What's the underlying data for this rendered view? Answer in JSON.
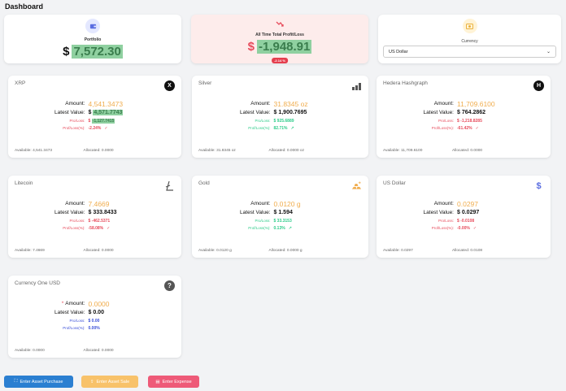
{
  "page_title": "Dashboard",
  "summary": {
    "portfolio": {
      "label": "Portfolio",
      "currency": "$",
      "value": "7,572.30"
    },
    "profit": {
      "label": "All Time Total Profit/Loss",
      "currency": "$",
      "value": "-1,948.91",
      "pct": "-2.14 %"
    },
    "currency": {
      "label": "Currency",
      "selected": "US Dollar"
    }
  },
  "labels": {
    "amount": "Amount:",
    "latest": "Latest Value:",
    "pl": "Pro/Loss:",
    "pct": "Prof/Loss(%):",
    "available": "Available:",
    "allocated": "Allocated:"
  },
  "assets": [
    {
      "name": "XRP",
      "amount": "4,541.3473",
      "latest_cur": "$",
      "latest": "4,571.7743",
      "pl_cur": "$",
      "pl": "-1,127.7415",
      "pct": "-2.24%",
      "available": "4,541.3473",
      "allocated": "0.0000",
      "icon": "x-circle-icon"
    },
    {
      "name": "Silver",
      "amount": "31.8345 oz",
      "latest": "$ 1,900.7695",
      "pl": "$ 925.6889",
      "pct": "82.71%",
      "available": "31.8345 oz",
      "allocated": "0.0000 oz",
      "icon": "bar-chart-icon"
    },
    {
      "name": "Hedera Hashgraph",
      "amount": "11,709.6100",
      "latest": "$ 764.2862",
      "pl": "$ -1,218.8285",
      "pct": "-61.42%",
      "available": "11,709.6100",
      "allocated": "0.0000",
      "icon": "h-circle-icon"
    },
    {
      "name": "Litecoin",
      "amount": "7.4669",
      "latest": "$ 333.8433",
      "pl": "$ -462.5371",
      "pct": "-58.08%",
      "available": "7.4669",
      "allocated": "0.0000",
      "icon": "litecoin-icon"
    },
    {
      "name": "Gold",
      "amount": "0.0120 g",
      "latest": "$ 1.594",
      "pl": "$ 33.3153",
      "pct": "0.13%",
      "available": "0.0120 g",
      "allocated": "0.0000 g",
      "icon": "gold-bars-icon"
    },
    {
      "name": "US Dollar",
      "amount": "0.0297",
      "latest": "$ 0.0297",
      "pl": "$ -0.0108",
      "pct": "-0.00%",
      "available": "0.0297",
      "allocated": "0.0108",
      "icon": "dollar-icon"
    },
    {
      "name": "Currency One USD",
      "amount": "0.0000",
      "latest": "$ 0.00",
      "pl": "$ 0.00",
      "pct": "0.00%",
      "available": "0.0000",
      "allocated": "0.0000",
      "icon": "question-circle-icon"
    }
  ],
  "buttons": {
    "purchase": "Enter Asset Purchase",
    "sale": "Enter Asset Sale",
    "expense": "Enter Expense"
  },
  "colors": {
    "positive": "#2ecc8a",
    "negative": "#e74c5c",
    "amount": "#f0ad4e",
    "highlight": "#8fd0a0"
  }
}
